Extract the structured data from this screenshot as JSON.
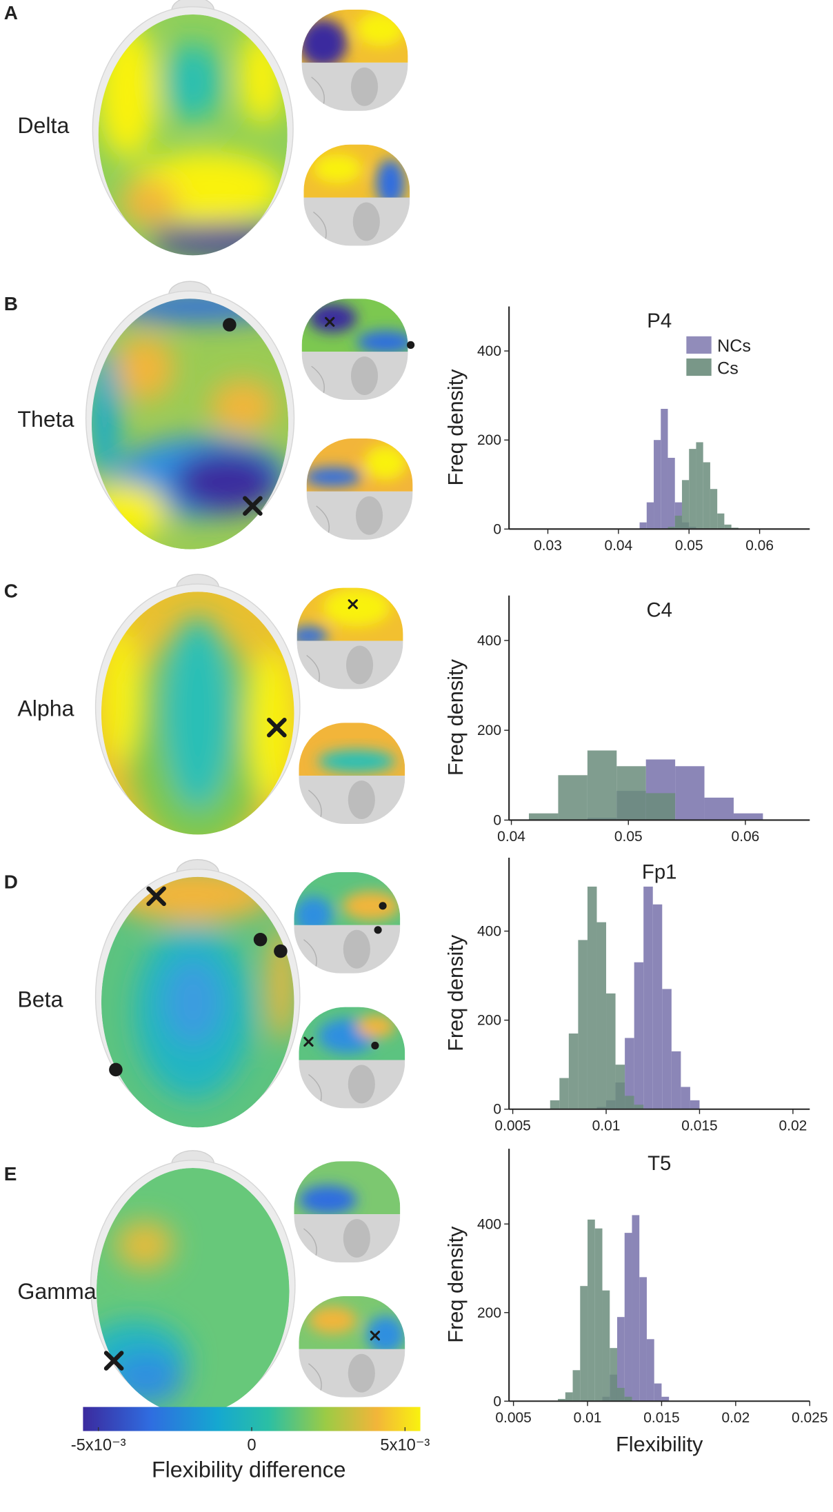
{
  "panels": [
    {
      "letter": "A",
      "band": "Delta"
    },
    {
      "letter": "B",
      "band": "Theta"
    },
    {
      "letter": "C",
      "band": "Alpha"
    },
    {
      "letter": "D",
      "band": "Beta"
    },
    {
      "letter": "E",
      "band": "Gamma"
    }
  ],
  "colorbar": {
    "lim": [
      -0.0055,
      0.0055
    ],
    "ticks": [
      {
        "value": -0.005,
        "label": "-5x10⁻³"
      },
      0,
      {
        "value": 0.005,
        "label": "5x10⁻³"
      }
    ],
    "label": "Flexibility difference"
  },
  "chart_data": [
    {
      "type": "histogram",
      "title": "P4",
      "ylabel": "Freq density",
      "xlim": [
        0.0245,
        0.0671
      ],
      "ylim": [
        0,
        500
      ],
      "xticks": [
        0.03,
        0.04,
        0.05,
        0.06
      ],
      "yticks": [
        0,
        200,
        400
      ],
      "series": [
        {
          "name": "NCs",
          "color": "#857fb3",
          "bins": [
            0.043,
            0.044,
            0.045,
            0.046,
            0.047,
            0.048,
            0.049,
            0.05,
            0.051
          ],
          "values": [
            15,
            60,
            200,
            270,
            160,
            60,
            15,
            5
          ]
        },
        {
          "name": "Cs",
          "color": "#6a8c7b",
          "bins": [
            0.047,
            0.048,
            0.049,
            0.05,
            0.051,
            0.052,
            0.053,
            0.054,
            0.055,
            0.056,
            0.057
          ],
          "values": [
            5,
            30,
            110,
            180,
            195,
            150,
            90,
            35,
            10,
            3
          ]
        }
      ]
    },
    {
      "type": "histogram",
      "title": "C4",
      "ylabel": "Freq density",
      "xlim": [
        0.0398,
        0.0655
      ],
      "ylim": [
        0,
        500
      ],
      "xticks": [
        0.04,
        0.05,
        0.06
      ],
      "yticks": [
        0,
        200,
        400
      ],
      "series": [
        {
          "color": "#857fb3",
          "bins": [
            0.0465,
            0.049,
            0.0515,
            0.054,
            0.0565,
            0.059,
            0.0615
          ],
          "values": [
            5,
            65,
            135,
            120,
            50,
            15
          ]
        },
        {
          "color": "#6a8c7b",
          "bins": [
            0.0415,
            0.044,
            0.0465,
            0.049,
            0.0515,
            0.054
          ],
          "values": [
            15,
            100,
            155,
            120,
            60
          ]
        }
      ]
    },
    {
      "type": "histogram",
      "title": "Fp1",
      "ylabel": "Freq density",
      "xlim": [
        0.0048,
        0.0209
      ],
      "ylim": [
        0,
        565
      ],
      "xticks": [
        0.005,
        0.01,
        0.015,
        0.02
      ],
      "yticks": [
        0,
        200,
        400
      ],
      "series": [
        {
          "color": "#857fb3",
          "bins": [
            0.0095,
            0.01,
            0.0105,
            0.011,
            0.0115,
            0.012,
            0.0125,
            0.013,
            0.0135,
            0.014,
            0.0145,
            0.015
          ],
          "values": [
            5,
            20,
            60,
            160,
            330,
            500,
            460,
            270,
            130,
            50,
            20
          ]
        },
        {
          "color": "#6a8c7b",
          "bins": [
            0.007,
            0.0075,
            0.008,
            0.0085,
            0.009,
            0.0095,
            0.01,
            0.0105,
            0.011,
            0.0115,
            0.012
          ],
          "values": [
            20,
            70,
            170,
            380,
            500,
            420,
            260,
            100,
            30,
            10
          ]
        }
      ]
    },
    {
      "type": "histogram",
      "title": "T5",
      "ylabel": "Freq density",
      "xlabel": "Flexibility",
      "xlim": [
        0.0047,
        0.025
      ],
      "ylim": [
        0,
        570
      ],
      "xticks": [
        0.005,
        0.01,
        0.015,
        0.02,
        0.025
      ],
      "yticks": [
        0,
        200,
        400
      ],
      "series": [
        {
          "color": "#857fb3",
          "bins": [
            0.011,
            0.0115,
            0.012,
            0.0125,
            0.013,
            0.0135,
            0.014,
            0.0145,
            0.015,
            0.0155
          ],
          "values": [
            10,
            60,
            190,
            380,
            420,
            280,
            140,
            40,
            10
          ]
        },
        {
          "color": "#6a8c7b",
          "bins": [
            0.008,
            0.0085,
            0.009,
            0.0095,
            0.01,
            0.0105,
            0.011,
            0.0115,
            0.012,
            0.0125,
            0.013
          ],
          "values": [
            5,
            20,
            70,
            260,
            410,
            390,
            250,
            120,
            30,
            10
          ]
        }
      ]
    }
  ]
}
